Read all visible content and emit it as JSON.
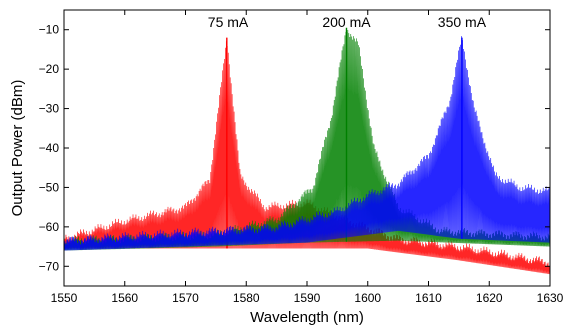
{
  "chart_data": {
    "type": "line",
    "title": "",
    "xlabel": "Wavelength (nm)",
    "ylabel": "Output Power (dBm)",
    "xlim": [
      1550,
      1630
    ],
    "ylim": [
      -75,
      -5
    ],
    "xticks": [
      1550,
      1560,
      1570,
      1580,
      1590,
      1600,
      1610,
      1620,
      1630
    ],
    "yticks": [
      -70,
      -60,
      -50,
      -40,
      -30,
      -20,
      -10
    ],
    "grid": false,
    "annotations": [
      {
        "text": "75 mA",
        "x": 1577,
        "y": -5
      },
      {
        "text": "200 mA",
        "x": 1596.5,
        "y": -5
      },
      {
        "text": "350 mA",
        "x": 1615.5,
        "y": -5
      }
    ],
    "series": [
      {
        "color": "#ff0000",
        "peak": [
          1576.8,
          -12
        ],
        "envelope_top": [
          [
            1550,
            -63
          ],
          [
            1560,
            -58.5
          ],
          [
            1570,
            -55
          ],
          [
            1574,
            -48
          ],
          [
            1576.8,
            -12
          ],
          [
            1579,
            -47
          ],
          [
            1583,
            -55
          ],
          [
            1590,
            -54
          ],
          [
            1596,
            -58
          ],
          [
            1605,
            -63
          ],
          [
            1615,
            -65
          ],
          [
            1630,
            -69
          ]
        ],
        "envelope_bottom": [
          [
            1550,
            -65.5
          ],
          [
            1570,
            -65.5
          ],
          [
            1590,
            -65.5
          ],
          [
            1600,
            -65.5
          ],
          [
            1615,
            -68.5
          ],
          [
            1630,
            -72
          ]
        ]
      },
      {
        "color": "#008000",
        "peak": [
          1596.5,
          -9.5
        ],
        "envelope_top": [
          [
            1550,
            -63.5
          ],
          [
            1575,
            -62
          ],
          [
            1585,
            -58
          ],
          [
            1591,
            -50
          ],
          [
            1594,
            -32
          ],
          [
            1596.5,
            -9.5
          ],
          [
            1598.5,
            -14
          ],
          [
            1601,
            -40
          ],
          [
            1605,
            -55
          ],
          [
            1612,
            -61
          ],
          [
            1630,
            -62.5
          ]
        ],
        "envelope_bottom": [
          [
            1550,
            -66
          ],
          [
            1575,
            -65
          ],
          [
            1590,
            -64
          ],
          [
            1605,
            -63.5
          ],
          [
            1630,
            -65
          ]
        ]
      },
      {
        "color": "#0000ff",
        "peak": [
          1615.5,
          -12
        ],
        "envelope_top": [
          [
            1550,
            -63.5
          ],
          [
            1585,
            -60
          ],
          [
            1595,
            -56
          ],
          [
            1600,
            -52
          ],
          [
            1605,
            -49
          ],
          [
            1610,
            -42
          ],
          [
            1613.5,
            -28
          ],
          [
            1615.5,
            -12
          ],
          [
            1617.5,
            -30
          ],
          [
            1621,
            -47
          ],
          [
            1625,
            -50
          ],
          [
            1630,
            -51
          ]
        ],
        "envelope_bottom": [
          [
            1550,
            -66
          ],
          [
            1590,
            -64
          ],
          [
            1605,
            -61
          ],
          [
            1615,
            -63
          ],
          [
            1630,
            -64
          ]
        ]
      }
    ]
  }
}
